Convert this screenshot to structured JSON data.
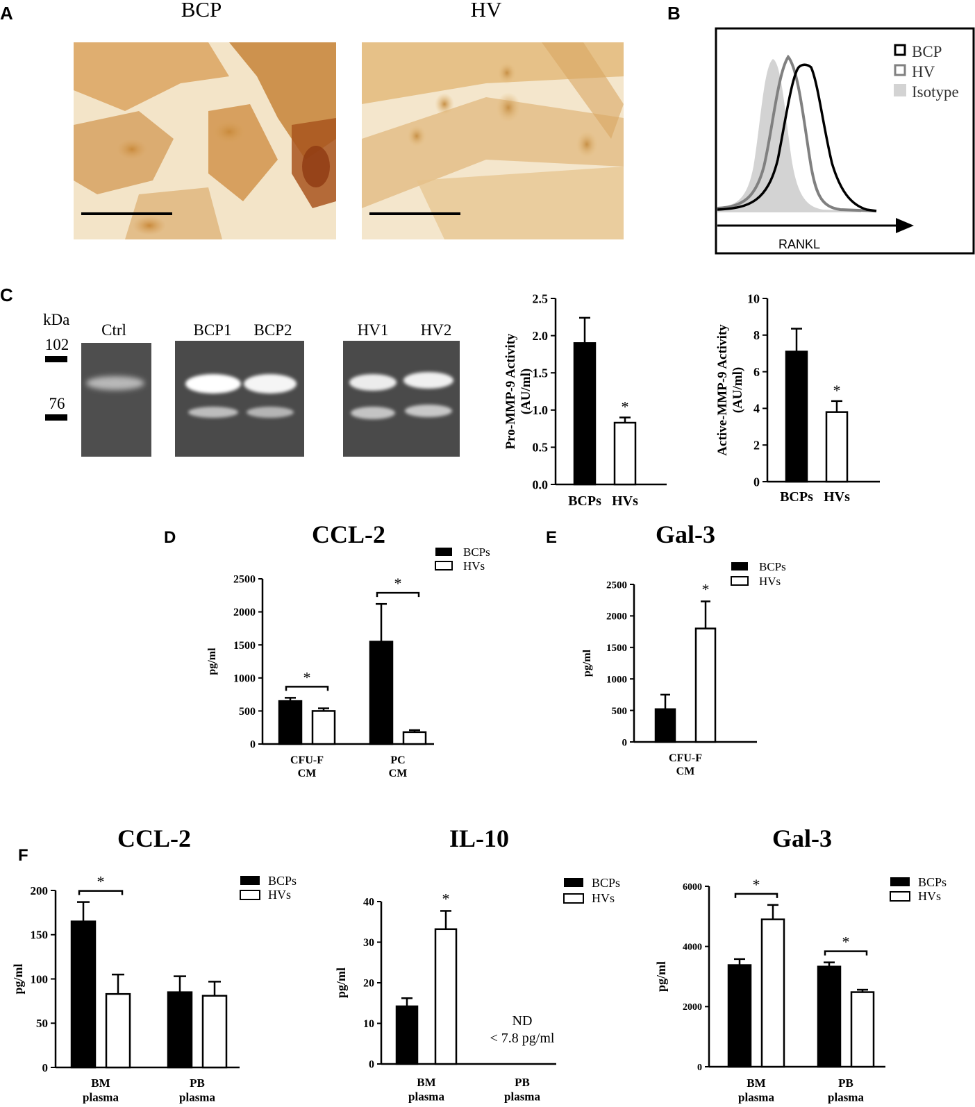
{
  "panel_letters": {
    "a": "A",
    "b": "B",
    "c": "C",
    "d": "D",
    "e": "E",
    "f": "F"
  },
  "panel_a": {
    "label_left": "BCP",
    "label_right": "HV"
  },
  "panel_b": {
    "xlabel": "RANKL",
    "legend": [
      {
        "name": "BCP",
        "color": "#000000"
      },
      {
        "name": "HV",
        "color": "#808080"
      },
      {
        "name": "Isotype",
        "color": "#d3d3d3"
      }
    ]
  },
  "panel_c_gel": {
    "unit": "kDa",
    "markers": [
      "102",
      "76"
    ],
    "lanes": [
      "Ctrl",
      "BCP1",
      "BCP2",
      "HV1",
      "HV2"
    ]
  },
  "colors": {
    "bcp": "#000000",
    "hv": "#ffffff"
  },
  "chart_data": [
    {
      "id": "pro_mmp9",
      "type": "bar",
      "ylabel": "Pro-MMP-9 Activity (AU/ml)",
      "ylim": [
        0,
        2.5
      ],
      "yticks": [
        "0.0",
        "0.5",
        "1.0",
        "1.5",
        "2.0",
        "2.5"
      ],
      "categories": [
        "BCPs",
        "HVs"
      ],
      "values": [
        1.9,
        0.83
      ],
      "errors": [
        0.34,
        0.07
      ],
      "annotations": [
        "",
        "*"
      ]
    },
    {
      "id": "active_mmp9",
      "type": "bar",
      "ylabel": "Active-MMP-9 Activity (AU/ml)",
      "ylim": [
        0,
        10
      ],
      "yticks": [
        "0",
        "2",
        "4",
        "6",
        "8",
        "10"
      ],
      "categories": [
        "BCPs",
        "HVs"
      ],
      "values": [
        7.1,
        3.8
      ],
      "errors": [
        1.25,
        0.6
      ],
      "annotations": [
        "",
        "*"
      ]
    },
    {
      "id": "d_ccl2",
      "type": "bar",
      "title": "CCL-2",
      "ylabel": "pg/ml",
      "ylim": [
        0,
        2500
      ],
      "yticks": [
        "0",
        "500",
        "1000",
        "1500",
        "2000",
        "2500"
      ],
      "categories": [
        "CFU-F CM",
        "PC CM"
      ],
      "series": [
        {
          "name": "BCPs",
          "values": [
            650,
            1550
          ],
          "errors": [
            50,
            570
          ]
        },
        {
          "name": "HVs",
          "values": [
            500,
            180
          ],
          "errors": [
            40,
            30
          ]
        }
      ],
      "annotations": [
        "*",
        "*"
      ]
    },
    {
      "id": "e_gal3",
      "type": "bar",
      "title": "Gal-3",
      "ylabel": "pg/ml",
      "ylim": [
        0,
        2500
      ],
      "yticks": [
        "0",
        "500",
        "1000",
        "1500",
        "2000",
        "2500"
      ],
      "categories": [
        "CFU-F CM"
      ],
      "series": [
        {
          "name": "BCPs",
          "values": [
            520
          ],
          "errors": [
            230
          ]
        },
        {
          "name": "HVs",
          "values": [
            1800
          ],
          "errors": [
            430
          ]
        }
      ],
      "annotations": [
        "*"
      ]
    },
    {
      "id": "f_ccl2",
      "type": "bar",
      "title": "CCL-2",
      "ylabel": "pg/ml",
      "ylim": [
        0,
        200
      ],
      "yticks": [
        "0",
        "50",
        "100",
        "150",
        "200"
      ],
      "categories": [
        "BM plasma",
        "PB plasma"
      ],
      "series": [
        {
          "name": "BCPs",
          "values": [
            165,
            85
          ],
          "errors": [
            22,
            18
          ]
        },
        {
          "name": "HVs",
          "values": [
            83,
            81
          ],
          "errors": [
            22,
            16
          ]
        }
      ],
      "annotations": [
        "*",
        ""
      ]
    },
    {
      "id": "f_il10",
      "type": "bar",
      "title": "IL-10",
      "ylabel": "pg/ml",
      "ylim": [
        0,
        40
      ],
      "yticks": [
        "0",
        "10",
        "20",
        "30",
        "40"
      ],
      "categories": [
        "BM plasma",
        "PB plasma"
      ],
      "series": [
        {
          "name": "BCPs",
          "values": [
            14.2,
            null
          ],
          "errors": [
            2,
            0
          ]
        },
        {
          "name": "HVs",
          "values": [
            33.2,
            null
          ],
          "errors": [
            4.5,
            0
          ]
        }
      ],
      "annotations": [
        "*",
        ""
      ],
      "nd_text": [
        "ND",
        "< 7.8 pg/ml"
      ]
    },
    {
      "id": "f_gal3",
      "type": "bar",
      "title": "Gal-3",
      "ylabel": "pg/ml",
      "ylim": [
        0,
        6000
      ],
      "yticks": [
        "0",
        "2000",
        "4000",
        "6000"
      ],
      "categories": [
        "BM plasma",
        "PB plasma"
      ],
      "series": [
        {
          "name": "BCPs",
          "values": [
            3380,
            3330
          ],
          "errors": [
            200,
            140
          ]
        },
        {
          "name": "HVs",
          "values": [
            4900,
            2480
          ],
          "errors": [
            480,
            80
          ]
        }
      ],
      "annotations": [
        "*",
        "*"
      ]
    }
  ]
}
